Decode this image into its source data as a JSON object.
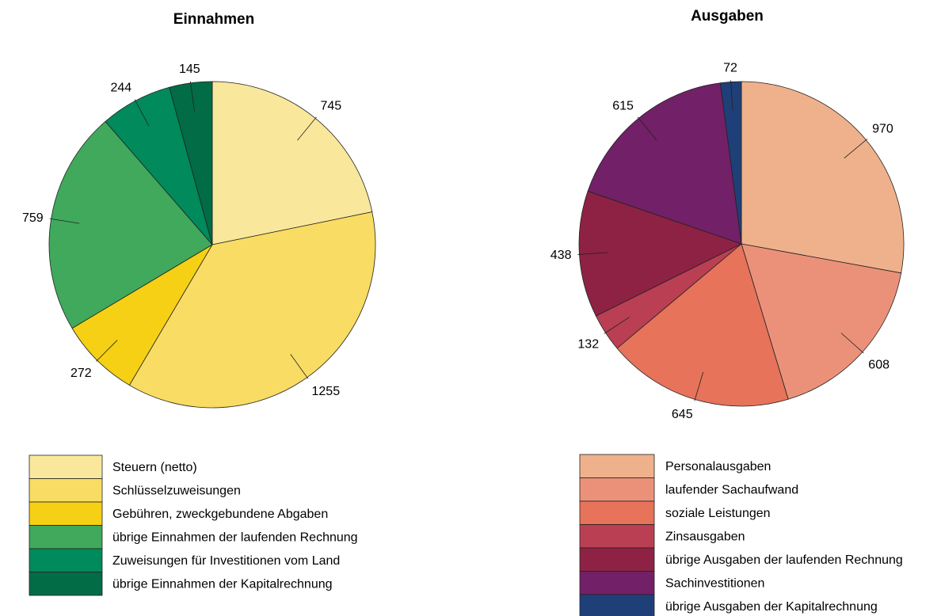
{
  "chart_data": [
    {
      "type": "pie",
      "title": "Einnahmen",
      "slices": [
        {
          "label": "Steuern (netto)",
          "value": 745,
          "color": "#f9e79c"
        },
        {
          "label": "Schlüsselzuweisungen",
          "value": 1255,
          "color": "#f9dc64"
        },
        {
          "label": "Gebühren, zweckgebundene Abgaben",
          "value": 272,
          "color": "#f6d014"
        },
        {
          "label": "übrige Einnahmen der laufenden Rechnung",
          "value": 759,
          "color": "#40a95c"
        },
        {
          "label": "Zuweisungen für Investitionen vom Land",
          "value": 244,
          "color": "#018a5c"
        },
        {
          "label": "übrige Einnahmen der Kapitalrechnung",
          "value": 145,
          "color": "#016c45"
        }
      ]
    },
    {
      "type": "pie",
      "title": "Ausgaben",
      "slices": [
        {
          "label": "Personalausgaben",
          "value": 970,
          "color": "#efb18b"
        },
        {
          "label": "laufender Sachaufwand",
          "value": 608,
          "color": "#eb917a"
        },
        {
          "label": "soziale Leistungen",
          "value": 645,
          "color": "#e6735a"
        },
        {
          "label": "Zinsausgaben",
          "value": 132,
          "color": "#ba3f52"
        },
        {
          "label": "übrige Ausgaben der laufenden Rechnung",
          "value": 438,
          "color": "#8e2244"
        },
        {
          "label": "Sachinvestitionen",
          "value": 615,
          "color": "#722067"
        },
        {
          "label": "übrige Ausgaben der Kapitalrechnung",
          "value": 72,
          "color": "#1f3f78"
        }
      ]
    }
  ]
}
